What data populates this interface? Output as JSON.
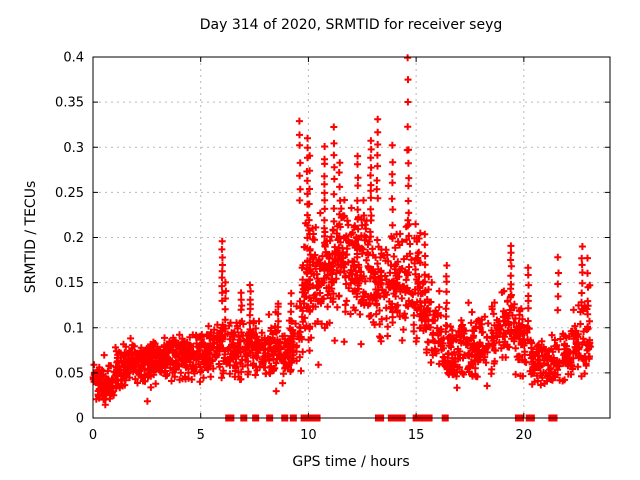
{
  "colors": {
    "background": "#ffffff",
    "marker": "#ff0000",
    "grid": "#b9b9b9",
    "axis": "#000000",
    "text": "#000000"
  },
  "chart_data": {
    "type": "scatter",
    "title": "Day 314 of 2020, SRMTID for receiver seyg",
    "xlabel": "GPS time / hours",
    "ylabel": "SRMTID / TECUs",
    "xlim": [
      0,
      24
    ],
    "ylim": [
      0,
      0.4
    ],
    "x_ticks": [
      0,
      5,
      10,
      15,
      20
    ],
    "x_tick_labels": [
      "0",
      "5",
      "10",
      "15",
      "20"
    ],
    "y_ticks": [
      0,
      0.05,
      0.1,
      0.15,
      0.2,
      0.25,
      0.3,
      0.35,
      0.4
    ],
    "y_tick_labels": [
      "0",
      "0.05",
      "0.1",
      "0.15",
      "0.2",
      "0.25",
      "0.3",
      "0.35",
      "0.4"
    ],
    "grid": true,
    "legend": "none",
    "marker": "plus-cross",
    "marker_color": "#ff0000",
    "series": [
      {
        "name": "srmtid-values",
        "style": "cross",
        "note": "dense noisy scatter; bands = [x_start,x_end,center_start,center_end,half_spread,count], spikes = [x,y_min,y_max,count] tall narrow excursion columns",
        "bands": [
          [
            0.0,
            1.0,
            0.042,
            0.04,
            0.013,
            90
          ],
          [
            1.0,
            2.0,
            0.055,
            0.065,
            0.016,
            95
          ],
          [
            2.0,
            3.0,
            0.058,
            0.06,
            0.016,
            95
          ],
          [
            3.0,
            4.0,
            0.065,
            0.068,
            0.016,
            95
          ],
          [
            4.0,
            5.0,
            0.068,
            0.07,
            0.017,
            95
          ],
          [
            5.0,
            6.0,
            0.07,
            0.08,
            0.018,
            90
          ],
          [
            6.0,
            7.0,
            0.075,
            0.075,
            0.02,
            85
          ],
          [
            7.0,
            8.0,
            0.08,
            0.075,
            0.02,
            85
          ],
          [
            8.0,
            9.0,
            0.07,
            0.075,
            0.02,
            85
          ],
          [
            9.0,
            9.7,
            0.075,
            0.09,
            0.024,
            55
          ],
          [
            9.7,
            10.3,
            0.14,
            0.16,
            0.045,
            60
          ],
          [
            10.3,
            11.0,
            0.15,
            0.16,
            0.038,
            65
          ],
          [
            11.0,
            12.0,
            0.17,
            0.18,
            0.04,
            100
          ],
          [
            12.0,
            13.0,
            0.17,
            0.17,
            0.04,
            100
          ],
          [
            13.0,
            13.6,
            0.16,
            0.13,
            0.04,
            55
          ],
          [
            13.6,
            14.5,
            0.14,
            0.15,
            0.04,
            75
          ],
          [
            14.5,
            15.2,
            0.17,
            0.15,
            0.045,
            65
          ],
          [
            15.2,
            16.0,
            0.12,
            0.1,
            0.028,
            65
          ],
          [
            16.0,
            16.7,
            0.09,
            0.075,
            0.022,
            55
          ],
          [
            16.7,
            17.5,
            0.07,
            0.08,
            0.022,
            60
          ],
          [
            17.5,
            18.5,
            0.08,
            0.075,
            0.024,
            75
          ],
          [
            18.5,
            19.5,
            0.09,
            0.11,
            0.027,
            75
          ],
          [
            19.5,
            20.3,
            0.09,
            0.08,
            0.025,
            60
          ],
          [
            20.3,
            21.3,
            0.065,
            0.06,
            0.02,
            70
          ],
          [
            21.3,
            22.3,
            0.065,
            0.07,
            0.022,
            70
          ],
          [
            22.3,
            23.1,
            0.08,
            0.09,
            0.027,
            60
          ]
        ],
        "spikes": [
          [
            6.0,
            0.13,
            0.195,
            9
          ],
          [
            6.15,
            0.1,
            0.15,
            6
          ],
          [
            6.9,
            0.11,
            0.14,
            5
          ],
          [
            7.3,
            0.1,
            0.145,
            8
          ],
          [
            8.6,
            0.1,
            0.13,
            5
          ],
          [
            9.2,
            0.055,
            0.135,
            10
          ],
          [
            9.6,
            0.24,
            0.33,
            7
          ],
          [
            9.95,
            0.15,
            0.31,
            14
          ],
          [
            10.05,
            0.1,
            0.29,
            12
          ],
          [
            10.75,
            0.19,
            0.3,
            12
          ],
          [
            11.2,
            0.22,
            0.32,
            8
          ],
          [
            11.45,
            0.2,
            0.285,
            7
          ],
          [
            12.3,
            0.21,
            0.29,
            8
          ],
          [
            12.9,
            0.22,
            0.31,
            10
          ],
          [
            13.2,
            0.24,
            0.33,
            8
          ],
          [
            13.9,
            0.2,
            0.3,
            8
          ],
          [
            14.6,
            0.3,
            0.4,
            5
          ],
          [
            14.65,
            0.2,
            0.295,
            8
          ],
          [
            15.4,
            0.13,
            0.2,
            8
          ],
          [
            16.4,
            0.1,
            0.17,
            8
          ],
          [
            19.4,
            0.12,
            0.19,
            10
          ],
          [
            20.2,
            0.1,
            0.165,
            8
          ],
          [
            21.6,
            0.12,
            0.175,
            5
          ],
          [
            22.7,
            0.12,
            0.19,
            8
          ],
          [
            22.95,
            0.1,
            0.175,
            6
          ]
        ]
      },
      {
        "name": "flags-at-zero",
        "style": "filled-square",
        "y": 0,
        "x": [
          6.3,
          6.4,
          7.0,
          7.55,
          8.2,
          8.9,
          9.3,
          9.8,
          9.9,
          10.0,
          10.1,
          10.2,
          10.3,
          10.4,
          13.25,
          13.35,
          13.85,
          13.95,
          14.05,
          14.25,
          14.35,
          15.0,
          15.1,
          15.2,
          15.3,
          15.4,
          15.5,
          15.6,
          16.35,
          19.75,
          19.85,
          20.25,
          20.35,
          21.3,
          21.4
        ]
      }
    ]
  }
}
